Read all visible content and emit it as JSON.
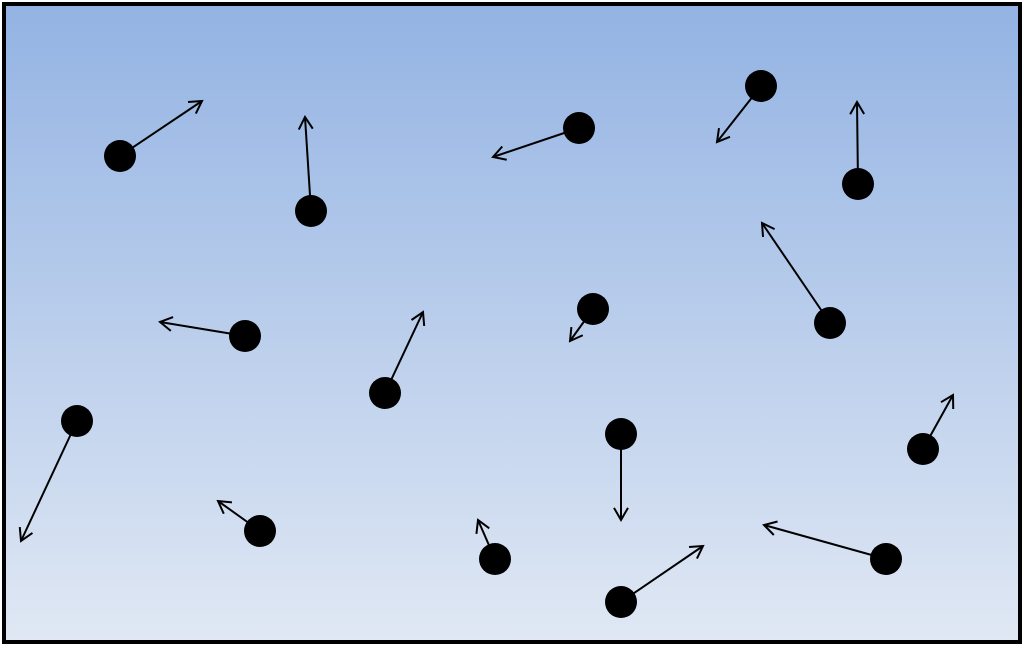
{
  "colors": {
    "gradient_top": "#93b3e3",
    "gradient_bottom": "#e0e8f4",
    "border": "#000000",
    "particle": "#000000",
    "arrow": "#000000"
  },
  "particles": [
    {
      "id": 1
    },
    {
      "id": 2
    },
    {
      "id": 3
    },
    {
      "id": 4
    },
    {
      "id": 5
    },
    {
      "id": 6
    },
    {
      "id": 7
    },
    {
      "id": 8
    },
    {
      "id": 9
    },
    {
      "id": 10
    },
    {
      "id": 11
    },
    {
      "id": 12
    },
    {
      "id": 13
    },
    {
      "id": 14
    },
    {
      "id": 15
    },
    {
      "id": 16
    },
    {
      "id": 17
    },
    {
      "id": 18
    }
  ]
}
